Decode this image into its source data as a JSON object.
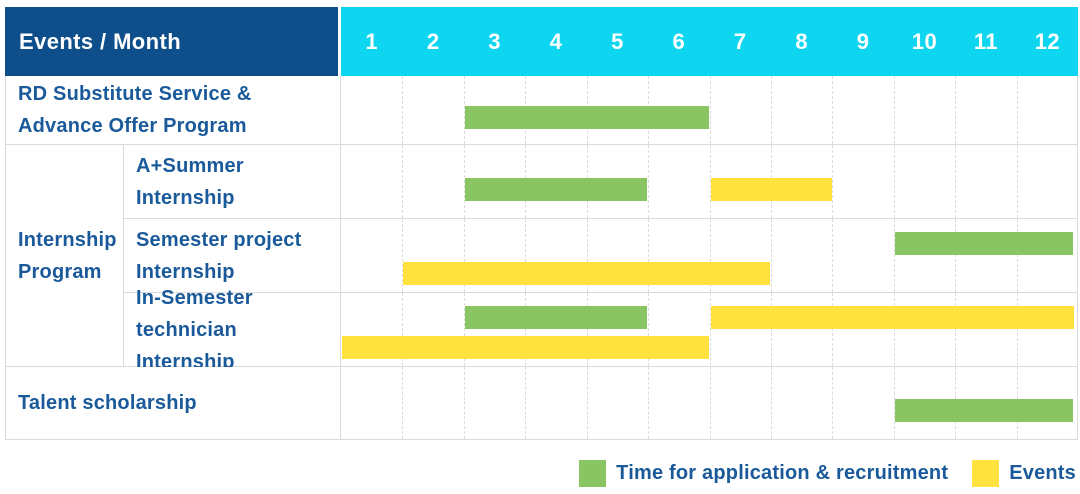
{
  "header": {
    "label": "Events / Month",
    "months": [
      "1",
      "2",
      "3",
      "4",
      "5",
      "6",
      "7",
      "8",
      "9",
      "10",
      "11",
      "12"
    ]
  },
  "group_label_lines": [
    "Internship",
    "Program"
  ],
  "rows": [
    {
      "id": "rd-substitute",
      "label_lines": [
        "RD Substitute Service &",
        "Advance Offer Program"
      ],
      "bars": [
        {
          "color": "green",
          "start": 3,
          "end": 6,
          "line": "single"
        }
      ]
    },
    {
      "id": "a-plus-summer-internship",
      "group": "Internship Program",
      "label_lines": [
        "A+Summer",
        "Internship"
      ],
      "bars": [
        {
          "color": "green",
          "start": 3,
          "end": 5,
          "line": "single"
        },
        {
          "color": "yellow",
          "start": 7,
          "end": 8,
          "line": "single"
        }
      ]
    },
    {
      "id": "semester-project-internship",
      "group": "Internship Program",
      "label_lines": [
        "Semester project",
        "Internship"
      ],
      "bars": [
        {
          "color": "green",
          "start": 10,
          "end": 12,
          "line": "upper"
        },
        {
          "color": "yellow",
          "start": 2,
          "end": 7,
          "line": "lower"
        }
      ]
    },
    {
      "id": "in-semester-technician-internship",
      "group": "Internship Program",
      "label_lines": [
        "In-Semester",
        "technician Internship"
      ],
      "bars": [
        {
          "color": "green",
          "start": 3,
          "end": 5,
          "line": "upper"
        },
        {
          "color": "yellow",
          "start": 7,
          "end": 12,
          "line": "upper"
        },
        {
          "color": "yellow",
          "start": 1,
          "end": 6,
          "line": "lower"
        }
      ]
    },
    {
      "id": "talent-scholarship",
      "label_lines": [
        "Talent scholarship"
      ],
      "bars": [
        {
          "color": "green",
          "start": 10,
          "end": 12,
          "line": "single"
        }
      ]
    }
  ],
  "legend": {
    "items": [
      {
        "color": "green",
        "label": "Time for application & recruitment"
      },
      {
        "color": "yellow",
        "label": "Events"
      }
    ]
  },
  "colors": {
    "navy": "#0D4E8B",
    "cyan": "#0ED6F0",
    "green": "#8AC564",
    "yellow": "#FFE23E",
    "text_blue": "#1A5A9A",
    "grid_line": "#DBDBDB"
  },
  "chart_data": {
    "type": "table",
    "subtype": "gantt",
    "title": "Events / Month",
    "x_axis": {
      "label": "Month",
      "ticks": [
        1,
        2,
        3,
        4,
        5,
        6,
        7,
        8,
        9,
        10,
        11,
        12
      ],
      "range": [
        1,
        12
      ]
    },
    "legend": [
      "Time for application & recruitment",
      "Events"
    ],
    "legend_position": "bottom-right",
    "grid": true,
    "series": [
      {
        "name": "RD Substitute Service & Advance Offer Program",
        "time_for_application_recruitment_months": [
          [
            3,
            6
          ]
        ],
        "events_months": []
      },
      {
        "name": "Internship Program - A+Summer Internship",
        "time_for_application_recruitment_months": [
          [
            3,
            5
          ]
        ],
        "events_months": [
          [
            7,
            8
          ]
        ]
      },
      {
        "name": "Internship Program - Semester project Internship",
        "time_for_application_recruitment_months": [
          [
            10,
            12
          ]
        ],
        "events_months": [
          [
            2,
            7
          ]
        ]
      },
      {
        "name": "Internship Program - In-Semester technician Internship",
        "time_for_application_recruitment_months": [
          [
            3,
            5
          ]
        ],
        "events_months": [
          [
            1,
            6
          ],
          [
            7,
            12
          ]
        ]
      },
      {
        "name": "Talent scholarship",
        "time_for_application_recruitment_months": [
          [
            10,
            12
          ]
        ],
        "events_months": []
      }
    ]
  }
}
